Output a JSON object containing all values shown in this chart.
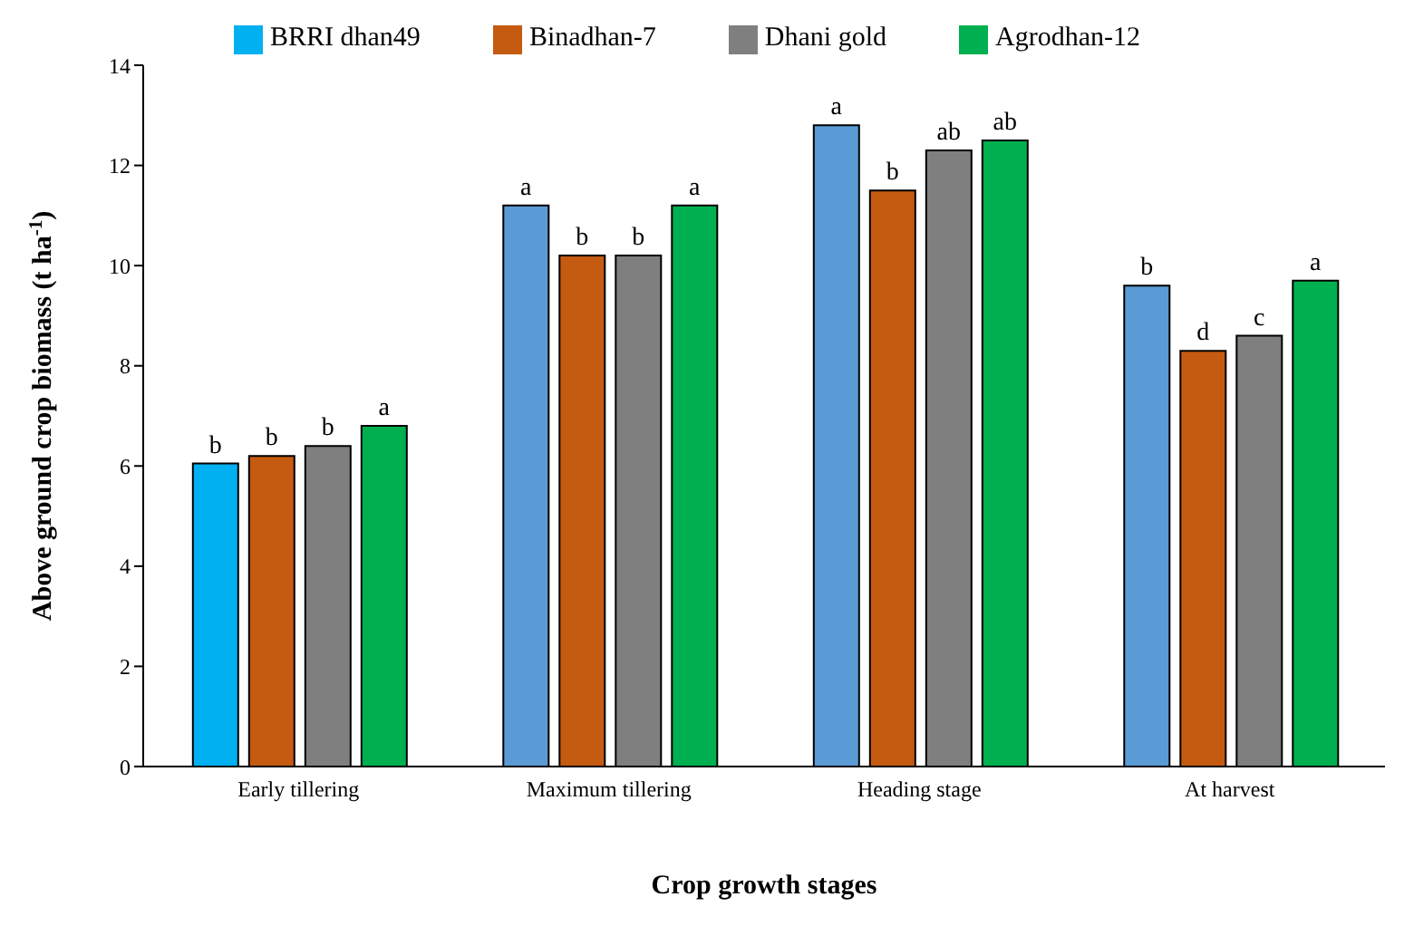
{
  "chart_data": {
    "type": "bar",
    "xlabel": "Crop growth stages",
    "ylabel": "Above ground crop biomass (t ha$^{-1}$)",
    "categories": [
      "Early tillering",
      "Maximum tillering",
      "Heading stage",
      "At harvest"
    ],
    "series": [
      {
        "name": "BRRI dhan49",
        "color": "#00b0f0",
        "colors": [
          "#00b0f0",
          "#5b9bd5",
          "#5b9bd5",
          "#5b9bd5"
        ],
        "values": [
          6.05,
          11.2,
          12.8,
          9.6
        ],
        "value_labels": [
          "b",
          "a",
          "a",
          "b"
        ]
      },
      {
        "name": "Binadhan-7",
        "color": "#c55a11",
        "values": [
          6.2,
          10.2,
          11.5,
          8.3
        ],
        "value_labels": [
          "b",
          "b",
          "b",
          "d"
        ]
      },
      {
        "name": "Dhani gold",
        "color": "#7f7f7f",
        "values": [
          6.4,
          10.2,
          12.3,
          8.6
        ],
        "value_labels": [
          "b",
          "b",
          "ab",
          "c"
        ]
      },
      {
        "name": "Agrodhan-12",
        "color": "#00b050",
        "values": [
          6.8,
          11.2,
          12.5,
          9.7
        ],
        "value_labels": [
          "a",
          "a",
          "ab",
          "a"
        ]
      }
    ],
    "ylim": [
      0,
      14
    ],
    "yticks": [
      0,
      2,
      4,
      6,
      8,
      10,
      12,
      14
    ],
    "grid": false,
    "legend": "top"
  }
}
